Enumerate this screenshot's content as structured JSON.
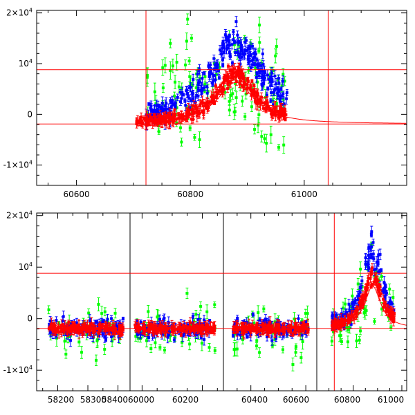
{
  "chart_data": [
    {
      "type": "scatter",
      "title": "",
      "xlabel": "",
      "ylabel": "",
      "xlim": [
        60530,
        61180
      ],
      "ylim": [
        -14000,
        20500
      ],
      "x_ticks": [
        60600,
        60800,
        61000
      ],
      "y_ticks": [
        -10000,
        0,
        10000,
        20000
      ],
      "y_tick_labels": [
        {
          "base": "-1×10",
          "exp": "4"
        },
        {
          "base": "0",
          "exp": ""
        },
        {
          "base": "10",
          "exp": "4"
        },
        {
          "base": "2×10",
          "exp": "4"
        }
      ],
      "reference_lines": {
        "horizontal": [
          8800,
          -1900
        ],
        "vertical": [
          60722,
          61042
        ]
      },
      "grid": false,
      "legend": "none",
      "series": [
        {
          "color": "#00ff00",
          "center": 60880,
          "width": 120,
          "peak": 9000,
          "noise": 9000,
          "x_start": 60722,
          "x_end": 60970,
          "count": 110
        },
        {
          "color": "#0000ff",
          "center": 60880,
          "width": 60,
          "peak": 16000,
          "noise": 2500,
          "x_start": 60722,
          "x_end": 60970,
          "count": 260
        },
        {
          "color": "#ff0000",
          "center": 60880,
          "width": 40,
          "peak": 10000,
          "noise": 1200,
          "x_start": 60705,
          "x_end": 60970,
          "count": 320
        }
      ],
      "model_curve": {
        "color": "#ff0000",
        "center": 60880,
        "baseline": -1900,
        "peak": 8200,
        "width": 40,
        "x_start": 60705,
        "x_end": 61180
      }
    },
    {
      "type": "scatter",
      "title": "",
      "xlabel": "",
      "ylabel": "",
      "segments": [
        {
          "xlim": [
            58130,
            58440
          ],
          "x_ticks": [
            58200,
            58300,
            58400
          ],
          "data_range": [
            58170,
            58420
          ],
          "flare": false
        },
        {
          "xlim": [
            59960,
            60270
          ],
          "x_ticks": [
            60000,
            60200
          ],
          "data_range": [
            59975,
            60245
          ],
          "flare": false
        },
        {
          "xlim": [
            60300,
            60640
          ],
          "x_ticks": [
            60400,
            60600
          ],
          "data_range": [
            60335,
            60610
          ],
          "flare": false
        },
        {
          "xlim": [
            60650,
            61020
          ],
          "x_ticks": [
            60800,
            61000
          ],
          "data_range": [
            60712,
            60970
          ],
          "flare": true
        }
      ],
      "x_tick_labels": [
        "58200",
        "58300",
        "5840060000",
        "60200",
        "60400",
        "60600",
        "60800",
        "61000"
      ],
      "ylim": [
        -14000,
        20500
      ],
      "y_ticks": [
        -10000,
        0,
        10000,
        20000
      ],
      "y_tick_labels": [
        {
          "base": "-1×10",
          "exp": "4"
        },
        {
          "base": "0",
          "exp": ""
        },
        {
          "base": "10",
          "exp": "4"
        },
        {
          "base": "2×10",
          "exp": "4"
        }
      ],
      "reference_lines": {
        "horizontal": [
          8800,
          -1900
        ],
        "vertical": [
          60722
        ]
      },
      "grid": false,
      "legend": "none",
      "series": [
        {
          "color": "#00ff00",
          "noise": 8000,
          "flare_peak": 9000
        },
        {
          "color": "#0000ff",
          "noise": 3000,
          "flare_peak": 16000
        },
        {
          "color": "#ff0000",
          "noise": 1300,
          "flare_peak": 10000
        }
      ]
    }
  ]
}
